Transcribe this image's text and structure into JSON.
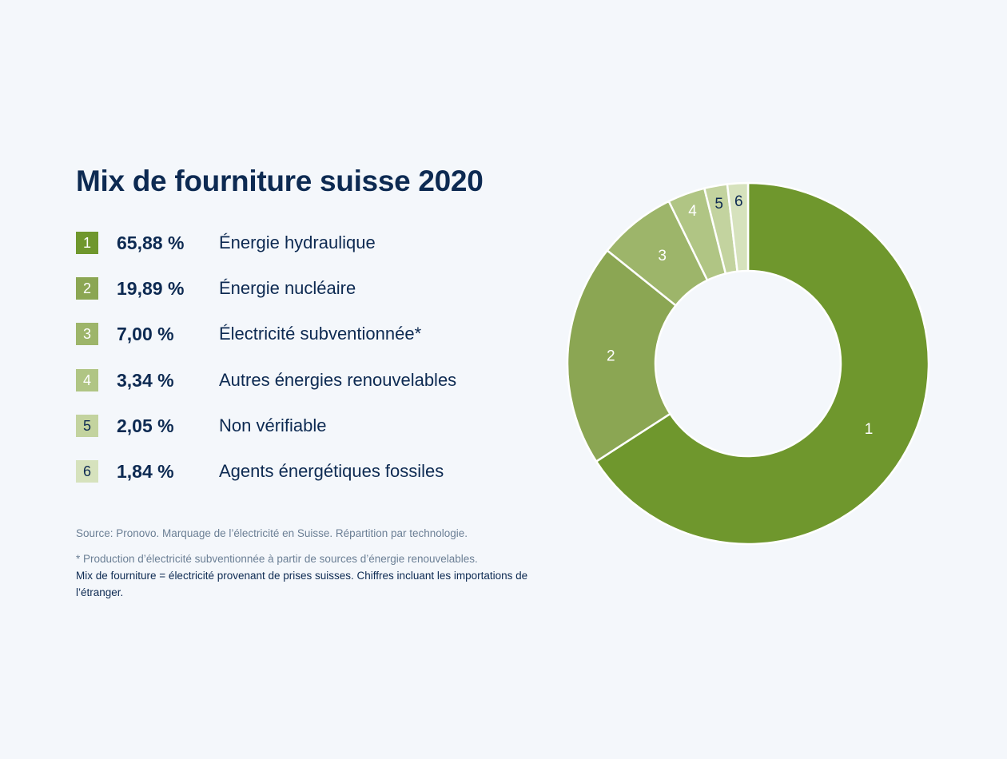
{
  "title": "Mix de fourniture suisse 2020",
  "colors": {
    "text": "#0d2a52",
    "muted": "#6b7f95",
    "background": "#f4f7fb",
    "segments": [
      "#6f972d",
      "#8ba653",
      "#9db56a",
      "#b0c584",
      "#c3d39f",
      "#d6e2bd"
    ]
  },
  "legend": [
    {
      "num": "1",
      "pct": "65,88 %",
      "label": "Énergie hydraulique"
    },
    {
      "num": "2",
      "pct": "19,89 %",
      "label": "Énergie nucléaire"
    },
    {
      "num": "3",
      "pct": "7,00 %",
      "label": "Électricité subventionnée*"
    },
    {
      "num": "4",
      "pct": "3,34 %",
      "label": "Autres énergies renouvelables"
    },
    {
      "num": "5",
      "pct": "2,05 %",
      "label": "Non vérifiable"
    },
    {
      "num": "6",
      "pct": "1,84 %",
      "label": "Agents énergétiques fossiles"
    }
  ],
  "source": "Source: Pronovo. Marquage de l’électricité en Suisse. Répartition par technologie.",
  "footnote_star": "* Production d’électricité subventionnée à partir de sources d’énergie renouvelables.",
  "footnote_text": "Mix de fourniture = électricité provenant de prises suisses. Chiffres incluant les importations de l’étranger.",
  "chart_data": {
    "type": "pie",
    "variant": "donut",
    "title": "Mix de fourniture suisse 2020",
    "categories": [
      "Énergie hydraulique",
      "Énergie nucléaire",
      "Électricité subventionnée*",
      "Autres énergies renouvelables",
      "Non vérifiable",
      "Agents énergétiques fossiles"
    ],
    "slice_labels": [
      "1",
      "2",
      "3",
      "4",
      "5",
      "6"
    ],
    "values": [
      65.88,
      19.89,
      7.0,
      3.34,
      2.05,
      1.84
    ],
    "unit": "%",
    "start": "top",
    "direction": "clockwise"
  }
}
